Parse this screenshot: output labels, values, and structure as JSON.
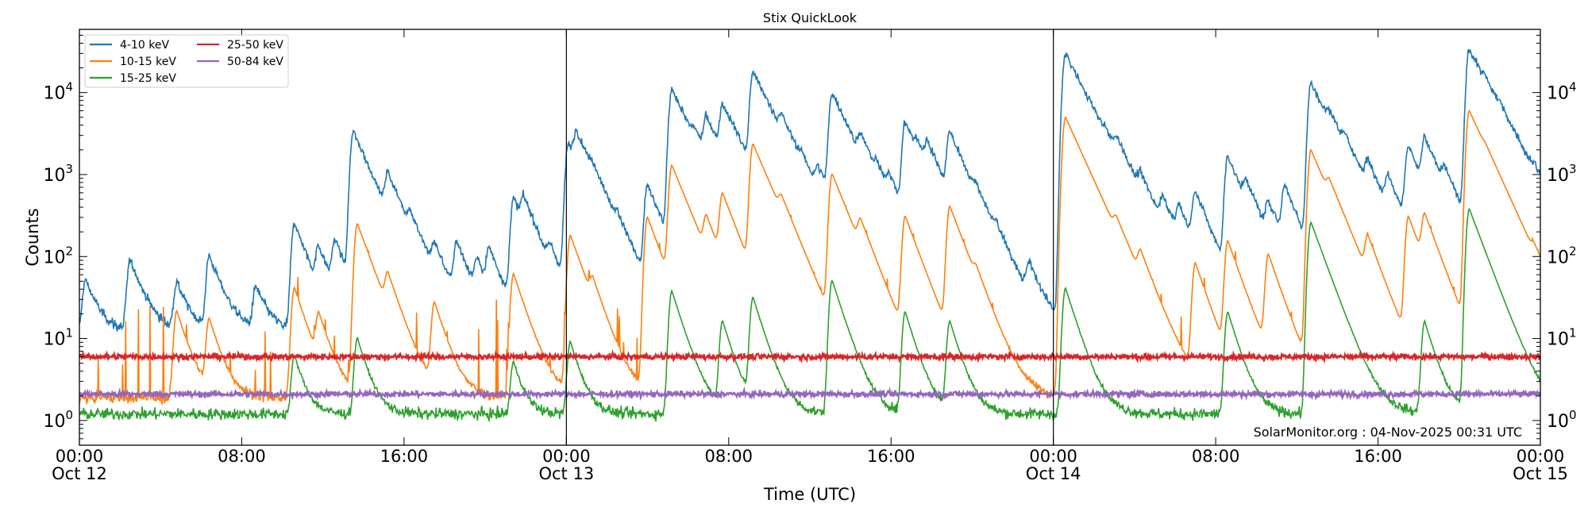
{
  "chart_data": {
    "type": "line",
    "title": "Stix QuickLook",
    "xlabel": "Time (UTC)",
    "ylabel": "Counts",
    "yscale": "log",
    "ylim": [
      0.5,
      59000
    ],
    "xlim_hours": [
      0,
      72
    ],
    "grid": false,
    "legend_position": "top-left",
    "x_ticks": [
      {
        "hour": 0,
        "time": "00:00",
        "date": "Oct 12"
      },
      {
        "hour": 8,
        "time": "08:00",
        "date": ""
      },
      {
        "hour": 16,
        "time": "16:00",
        "date": ""
      },
      {
        "hour": 24,
        "time": "00:00",
        "date": "Oct 13"
      },
      {
        "hour": 32,
        "time": "08:00",
        "date": ""
      },
      {
        "hour": 40,
        "time": "16:00",
        "date": ""
      },
      {
        "hour": 48,
        "time": "00:00",
        "date": "Oct 14"
      },
      {
        "hour": 56,
        "time": "08:00",
        "date": ""
      },
      {
        "hour": 64,
        "time": "16:00",
        "date": ""
      },
      {
        "hour": 72,
        "time": "00:00",
        "date": "Oct 15"
      }
    ],
    "y_ticks": [
      {
        "value": 1,
        "label": "10",
        "exp": "0"
      },
      {
        "value": 10,
        "label": "10",
        "exp": "1"
      },
      {
        "value": 100,
        "label": "10",
        "exp": "2"
      },
      {
        "value": 1000,
        "label": "10",
        "exp": "3"
      },
      {
        "value": 10000,
        "label": "10",
        "exp": "4"
      }
    ],
    "day_boundaries_hours": [
      24,
      48
    ],
    "series": [
      {
        "name": "4-10 keV",
        "color": "#1f77b4",
        "baseline": 12,
        "peaks": [
          [
            0.3,
            40
          ],
          [
            2.5,
            80
          ],
          [
            4.8,
            35
          ],
          [
            6.4,
            90
          ],
          [
            8.7,
            30
          ],
          [
            10.6,
            240
          ],
          [
            11.8,
            90
          ],
          [
            12.6,
            120
          ],
          [
            13.5,
            3300
          ],
          [
            15.2,
            700
          ],
          [
            16.3,
            130
          ],
          [
            17.5,
            80
          ],
          [
            18.6,
            120
          ],
          [
            19.6,
            60
          ],
          [
            20.2,
            90
          ],
          [
            21.4,
            500
          ],
          [
            21.9,
            300
          ],
          [
            23.2,
            60
          ],
          [
            24.1,
            2300
          ],
          [
            24.5,
            2100
          ],
          [
            25.3,
            250
          ],
          [
            26.5,
            80
          ],
          [
            28.0,
            700
          ],
          [
            29.2,
            11000
          ],
          [
            30.3,
            900
          ],
          [
            30.9,
            3300
          ],
          [
            31.7,
            5500
          ],
          [
            32.2,
            400
          ],
          [
            33.2,
            17000
          ],
          [
            34.6,
            2000
          ],
          [
            35.6,
            300
          ],
          [
            36.4,
            600
          ],
          [
            37.1,
            9500
          ],
          [
            38.5,
            1400
          ],
          [
            39.3,
            300
          ],
          [
            39.9,
            400
          ],
          [
            40.7,
            4000
          ],
          [
            41.3,
            700
          ],
          [
            41.8,
            1200
          ],
          [
            42.9,
            2800
          ],
          [
            44.2,
            170
          ],
          [
            45.2,
            60
          ],
          [
            46.8,
            50
          ],
          [
            48.6,
            30000
          ],
          [
            49.8,
            300
          ],
          [
            50.5,
            400
          ],
          [
            51.1,
            1000
          ],
          [
            52.3,
            400
          ],
          [
            53.4,
            300
          ],
          [
            54.2,
            250
          ],
          [
            55.0,
            500
          ],
          [
            56.6,
            1600
          ],
          [
            57.5,
            400
          ],
          [
            58.6,
            300
          ],
          [
            59.4,
            600
          ],
          [
            60.7,
            13000
          ],
          [
            61.6,
            1800
          ],
          [
            62.4,
            700
          ],
          [
            63.5,
            800
          ],
          [
            64.5,
            600
          ],
          [
            65.5,
            2000
          ],
          [
            66.3,
            2100
          ],
          [
            67.3,
            500
          ],
          [
            68.5,
            34000
          ],
          [
            69.3,
            1700
          ],
          [
            70.0,
            800
          ],
          [
            70.8,
            150
          ],
          [
            71.7,
            300
          ]
        ]
      },
      {
        "name": "10-15 keV",
        "color": "#ff7f0e",
        "baseline": 1.9,
        "peaks": [
          [
            4.8,
            20
          ],
          [
            6.4,
            15
          ],
          [
            10.6,
            40
          ],
          [
            11.8,
            15
          ],
          [
            13.7,
            250
          ],
          [
            15.2,
            40
          ],
          [
            17.5,
            25
          ],
          [
            21.4,
            60
          ],
          [
            24.2,
            180
          ],
          [
            25.3,
            25
          ],
          [
            28.0,
            300
          ],
          [
            29.2,
            1250
          ],
          [
            30.9,
            200
          ],
          [
            31.7,
            500
          ],
          [
            33.2,
            2300
          ],
          [
            34.6,
            200
          ],
          [
            37.1,
            1000
          ],
          [
            38.5,
            150
          ],
          [
            40.7,
            300
          ],
          [
            42.9,
            400
          ],
          [
            44.2,
            20
          ],
          [
            48.6,
            5000
          ],
          [
            51.1,
            100
          ],
          [
            52.3,
            60
          ],
          [
            55.0,
            80
          ],
          [
            56.6,
            150
          ],
          [
            58.6,
            100
          ],
          [
            60.7,
            2000
          ],
          [
            61.6,
            300
          ],
          [
            63.5,
            120
          ],
          [
            65.5,
            300
          ],
          [
            66.3,
            250
          ],
          [
            68.5,
            6000
          ],
          [
            69.3,
            200
          ],
          [
            71.7,
            30
          ]
        ]
      },
      {
        "name": "15-25 keV",
        "color": "#2ca02c",
        "baseline": 1.2,
        "peaks": [
          [
            10.6,
            5
          ],
          [
            13.7,
            9
          ],
          [
            21.4,
            4
          ],
          [
            24.2,
            8
          ],
          [
            29.2,
            37
          ],
          [
            31.7,
            15
          ],
          [
            33.2,
            30
          ],
          [
            37.1,
            50
          ],
          [
            40.7,
            20
          ],
          [
            42.9,
            15
          ],
          [
            48.6,
            40
          ],
          [
            56.6,
            20
          ],
          [
            60.7,
            260
          ],
          [
            66.3,
            15
          ],
          [
            68.5,
            380
          ]
        ]
      },
      {
        "name": "25-50 keV",
        "color": "#d62728",
        "baseline": 6.0,
        "peaks": []
      },
      {
        "name": "50-84 keV",
        "color": "#9467bd",
        "baseline": 2.1,
        "peaks": []
      }
    ],
    "watermark": "SolarMonitor.org : 04-Nov-2025 00:31 UTC"
  }
}
